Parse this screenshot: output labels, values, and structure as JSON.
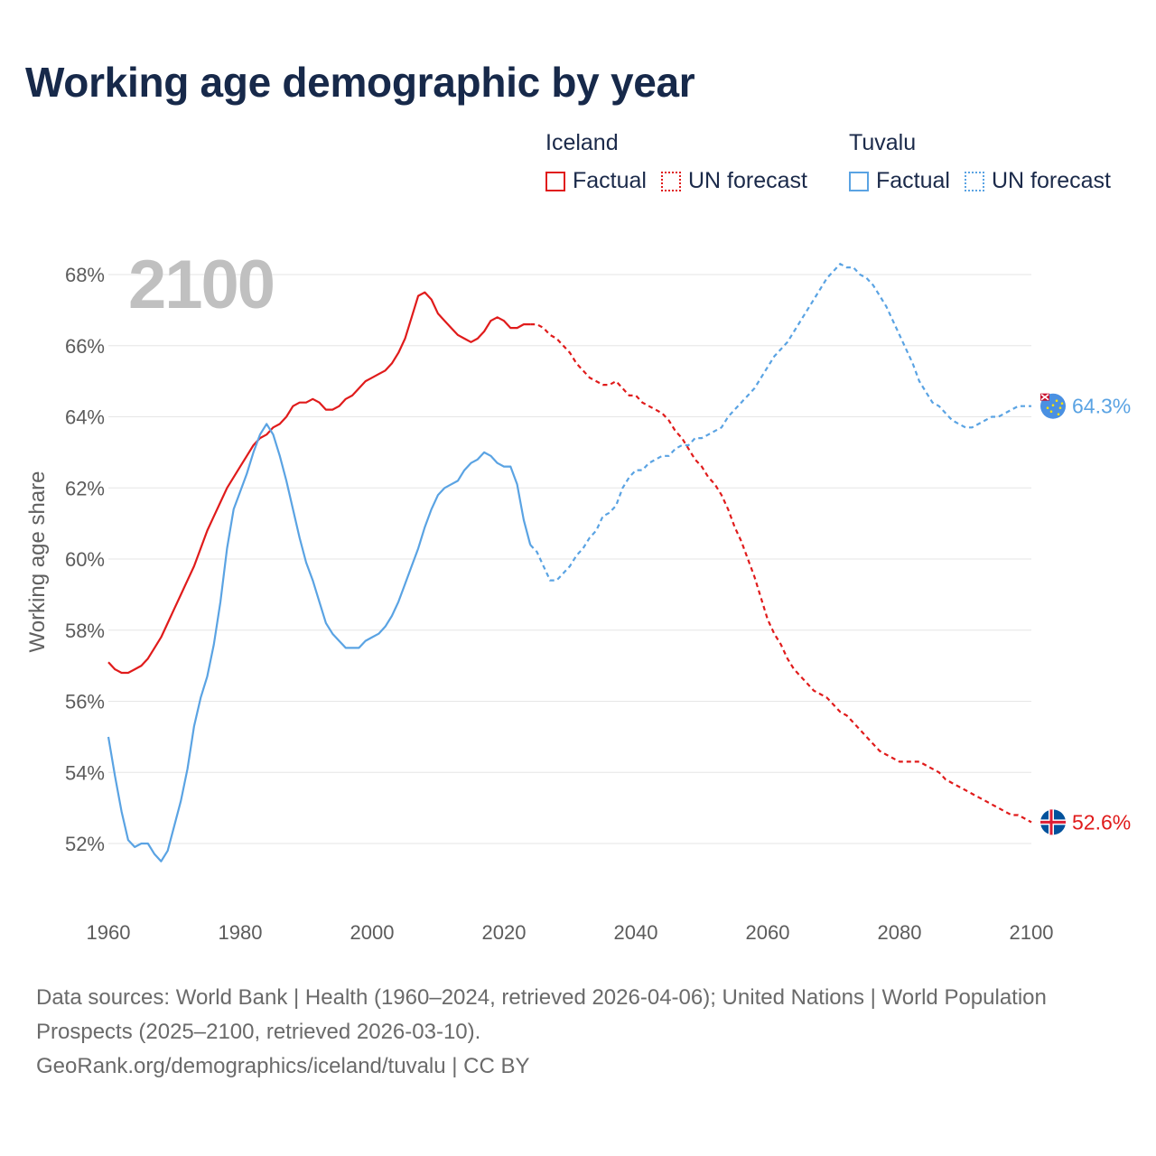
{
  "title": "Working age demographic by year",
  "year_watermark": "2100",
  "legend": {
    "groups": [
      {
        "name": "Iceland",
        "color": "#e01b1b",
        "items": [
          {
            "label": "Factual",
            "style": "solid"
          },
          {
            "label": "UN forecast",
            "style": "dotted"
          }
        ]
      },
      {
        "name": "Tuvalu",
        "color": "#5aa3e3",
        "items": [
          {
            "label": "Factual",
            "style": "solid"
          },
          {
            "label": "UN forecast",
            "style": "dotted"
          }
        ]
      }
    ]
  },
  "sources": {
    "line1": "Data sources: World Bank | Health (1960–2024, retrieved 2026-04-06); United Nations | World Population Prospects (2025–2100, retrieved 2026-03-10).",
    "line2": "GeoRank.org/demographics/iceland/tuvalu | CC BY"
  },
  "chart_data": {
    "type": "line",
    "title": "Working age demographic by year",
    "xlabel": "",
    "ylabel": "Working age share",
    "xlim": [
      1960,
      2100
    ],
    "ylim": [
      51,
      69
    ],
    "x_ticks": [
      1960,
      1980,
      2000,
      2020,
      2040,
      2060,
      2080,
      2100
    ],
    "y_ticks": [
      52,
      54,
      56,
      58,
      60,
      62,
      64,
      66,
      68
    ],
    "y_tick_suffix": "%",
    "grid": true,
    "factual_end_year": 2024,
    "series": [
      {
        "name": "Iceland",
        "color": "#e01b1b",
        "end_label": "52.6%",
        "points": [
          [
            1960,
            57.1
          ],
          [
            1961,
            56.9
          ],
          [
            1962,
            56.8
          ],
          [
            1963,
            56.8
          ],
          [
            1964,
            56.9
          ],
          [
            1965,
            57.0
          ],
          [
            1966,
            57.2
          ],
          [
            1967,
            57.5
          ],
          [
            1968,
            57.8
          ],
          [
            1969,
            58.2
          ],
          [
            1970,
            58.6
          ],
          [
            1971,
            59.0
          ],
          [
            1972,
            59.4
          ],
          [
            1973,
            59.8
          ],
          [
            1974,
            60.3
          ],
          [
            1975,
            60.8
          ],
          [
            1976,
            61.2
          ],
          [
            1977,
            61.6
          ],
          [
            1978,
            62.0
          ],
          [
            1979,
            62.3
          ],
          [
            1980,
            62.6
          ],
          [
            1981,
            62.9
          ],
          [
            1982,
            63.2
          ],
          [
            1983,
            63.4
          ],
          [
            1984,
            63.5
          ],
          [
            1985,
            63.7
          ],
          [
            1986,
            63.8
          ],
          [
            1987,
            64.0
          ],
          [
            1988,
            64.3
          ],
          [
            1989,
            64.4
          ],
          [
            1990,
            64.4
          ],
          [
            1991,
            64.5
          ],
          [
            1992,
            64.4
          ],
          [
            1993,
            64.2
          ],
          [
            1994,
            64.2
          ],
          [
            1995,
            64.3
          ],
          [
            1996,
            64.5
          ],
          [
            1997,
            64.6
          ],
          [
            1998,
            64.8
          ],
          [
            1999,
            65.0
          ],
          [
            2000,
            65.1
          ],
          [
            2001,
            65.2
          ],
          [
            2002,
            65.3
          ],
          [
            2003,
            65.5
          ],
          [
            2004,
            65.8
          ],
          [
            2005,
            66.2
          ],
          [
            2006,
            66.8
          ],
          [
            2007,
            67.4
          ],
          [
            2008,
            67.5
          ],
          [
            2009,
            67.3
          ],
          [
            2010,
            66.9
          ],
          [
            2011,
            66.7
          ],
          [
            2012,
            66.5
          ],
          [
            2013,
            66.3
          ],
          [
            2014,
            66.2
          ],
          [
            2015,
            66.1
          ],
          [
            2016,
            66.2
          ],
          [
            2017,
            66.4
          ],
          [
            2018,
            66.7
          ],
          [
            2019,
            66.8
          ],
          [
            2020,
            66.7
          ],
          [
            2021,
            66.5
          ],
          [
            2022,
            66.5
          ],
          [
            2023,
            66.6
          ],
          [
            2024,
            66.6
          ],
          [
            2025,
            66.6
          ],
          [
            2026,
            66.5
          ],
          [
            2027,
            66.3
          ],
          [
            2028,
            66.2
          ],
          [
            2029,
            66.0
          ],
          [
            2030,
            65.8
          ],
          [
            2031,
            65.5
          ],
          [
            2032,
            65.3
          ],
          [
            2033,
            65.1
          ],
          [
            2034,
            65.0
          ],
          [
            2035,
            64.9
          ],
          [
            2036,
            64.9
          ],
          [
            2037,
            65.0
          ],
          [
            2038,
            64.8
          ],
          [
            2039,
            64.6
          ],
          [
            2040,
            64.6
          ],
          [
            2041,
            64.4
          ],
          [
            2042,
            64.3
          ],
          [
            2043,
            64.2
          ],
          [
            2044,
            64.1
          ],
          [
            2045,
            63.9
          ],
          [
            2046,
            63.6
          ],
          [
            2047,
            63.4
          ],
          [
            2048,
            63.1
          ],
          [
            2049,
            62.8
          ],
          [
            2050,
            62.6
          ],
          [
            2051,
            62.3
          ],
          [
            2052,
            62.1
          ],
          [
            2053,
            61.8
          ],
          [
            2054,
            61.4
          ],
          [
            2055,
            60.9
          ],
          [
            2056,
            60.5
          ],
          [
            2057,
            60.0
          ],
          [
            2058,
            59.5
          ],
          [
            2059,
            58.9
          ],
          [
            2060,
            58.3
          ],
          [
            2061,
            57.9
          ],
          [
            2062,
            57.6
          ],
          [
            2063,
            57.2
          ],
          [
            2064,
            56.9
          ],
          [
            2065,
            56.7
          ],
          [
            2066,
            56.5
          ],
          [
            2067,
            56.3
          ],
          [
            2068,
            56.2
          ],
          [
            2069,
            56.1
          ],
          [
            2070,
            55.9
          ],
          [
            2071,
            55.7
          ],
          [
            2072,
            55.6
          ],
          [
            2073,
            55.4
          ],
          [
            2074,
            55.2
          ],
          [
            2075,
            55.0
          ],
          [
            2076,
            54.8
          ],
          [
            2077,
            54.6
          ],
          [
            2078,
            54.5
          ],
          [
            2079,
            54.4
          ],
          [
            2080,
            54.3
          ],
          [
            2081,
            54.3
          ],
          [
            2082,
            54.3
          ],
          [
            2083,
            54.3
          ],
          [
            2084,
            54.2
          ],
          [
            2085,
            54.1
          ],
          [
            2086,
            54.0
          ],
          [
            2087,
            53.8
          ],
          [
            2088,
            53.7
          ],
          [
            2089,
            53.6
          ],
          [
            2090,
            53.5
          ],
          [
            2091,
            53.4
          ],
          [
            2092,
            53.3
          ],
          [
            2093,
            53.2
          ],
          [
            2094,
            53.1
          ],
          [
            2095,
            53.0
          ],
          [
            2096,
            52.9
          ],
          [
            2097,
            52.8
          ],
          [
            2098,
            52.8
          ],
          [
            2099,
            52.7
          ],
          [
            2100,
            52.6
          ]
        ]
      },
      {
        "name": "Tuvalu",
        "color": "#5aa3e3",
        "end_label": "64.3%",
        "points": [
          [
            1960,
            55.0
          ],
          [
            1961,
            53.9
          ],
          [
            1962,
            52.9
          ],
          [
            1963,
            52.1
          ],
          [
            1964,
            51.9
          ],
          [
            1965,
            52.0
          ],
          [
            1966,
            52.0
          ],
          [
            1967,
            51.7
          ],
          [
            1968,
            51.5
          ],
          [
            1969,
            51.8
          ],
          [
            1970,
            52.5
          ],
          [
            1971,
            53.2
          ],
          [
            1972,
            54.1
          ],
          [
            1973,
            55.3
          ],
          [
            1974,
            56.1
          ],
          [
            1975,
            56.7
          ],
          [
            1976,
            57.6
          ],
          [
            1977,
            58.8
          ],
          [
            1978,
            60.3
          ],
          [
            1979,
            61.4
          ],
          [
            1980,
            61.9
          ],
          [
            1981,
            62.4
          ],
          [
            1982,
            63.0
          ],
          [
            1983,
            63.5
          ],
          [
            1984,
            63.8
          ],
          [
            1985,
            63.5
          ],
          [
            1986,
            62.9
          ],
          [
            1987,
            62.2
          ],
          [
            1988,
            61.4
          ],
          [
            1989,
            60.6
          ],
          [
            1990,
            59.9
          ],
          [
            1991,
            59.4
          ],
          [
            1992,
            58.8
          ],
          [
            1993,
            58.2
          ],
          [
            1994,
            57.9
          ],
          [
            1995,
            57.7
          ],
          [
            1996,
            57.5
          ],
          [
            1997,
            57.5
          ],
          [
            1998,
            57.5
          ],
          [
            1999,
            57.7
          ],
          [
            2000,
            57.8
          ],
          [
            2001,
            57.9
          ],
          [
            2002,
            58.1
          ],
          [
            2003,
            58.4
          ],
          [
            2004,
            58.8
          ],
          [
            2005,
            59.3
          ],
          [
            2006,
            59.8
          ],
          [
            2007,
            60.3
          ],
          [
            2008,
            60.9
          ],
          [
            2009,
            61.4
          ],
          [
            2010,
            61.8
          ],
          [
            2011,
            62.0
          ],
          [
            2012,
            62.1
          ],
          [
            2013,
            62.2
          ],
          [
            2014,
            62.5
          ],
          [
            2015,
            62.7
          ],
          [
            2016,
            62.8
          ],
          [
            2017,
            63.0
          ],
          [
            2018,
            62.9
          ],
          [
            2019,
            62.7
          ],
          [
            2020,
            62.6
          ],
          [
            2021,
            62.6
          ],
          [
            2022,
            62.1
          ],
          [
            2023,
            61.1
          ],
          [
            2024,
            60.4
          ],
          [
            2025,
            60.2
          ],
          [
            2026,
            59.8
          ],
          [
            2027,
            59.4
          ],
          [
            2028,
            59.4
          ],
          [
            2029,
            59.6
          ],
          [
            2030,
            59.8
          ],
          [
            2031,
            60.1
          ],
          [
            2032,
            60.3
          ],
          [
            2033,
            60.6
          ],
          [
            2034,
            60.8
          ],
          [
            2035,
            61.2
          ],
          [
            2036,
            61.3
          ],
          [
            2037,
            61.5
          ],
          [
            2038,
            62.0
          ],
          [
            2039,
            62.3
          ],
          [
            2040,
            62.5
          ],
          [
            2041,
            62.5
          ],
          [
            2042,
            62.7
          ],
          [
            2043,
            62.8
          ],
          [
            2044,
            62.9
          ],
          [
            2045,
            62.9
          ],
          [
            2046,
            63.1
          ],
          [
            2047,
            63.2
          ],
          [
            2048,
            63.2
          ],
          [
            2049,
            63.4
          ],
          [
            2050,
            63.4
          ],
          [
            2051,
            63.5
          ],
          [
            2052,
            63.6
          ],
          [
            2053,
            63.7
          ],
          [
            2054,
            64.0
          ],
          [
            2055,
            64.2
          ],
          [
            2056,
            64.4
          ],
          [
            2057,
            64.6
          ],
          [
            2058,
            64.8
          ],
          [
            2059,
            65.1
          ],
          [
            2060,
            65.4
          ],
          [
            2061,
            65.7
          ],
          [
            2062,
            65.9
          ],
          [
            2063,
            66.1
          ],
          [
            2064,
            66.4
          ],
          [
            2065,
            66.7
          ],
          [
            2066,
            67.0
          ],
          [
            2067,
            67.3
          ],
          [
            2068,
            67.6
          ],
          [
            2069,
            67.9
          ],
          [
            2070,
            68.1
          ],
          [
            2071,
            68.3
          ],
          [
            2072,
            68.2
          ],
          [
            2073,
            68.2
          ],
          [
            2074,
            68.0
          ],
          [
            2075,
            67.9
          ],
          [
            2076,
            67.7
          ],
          [
            2077,
            67.4
          ],
          [
            2078,
            67.1
          ],
          [
            2079,
            66.7
          ],
          [
            2080,
            66.3
          ],
          [
            2081,
            65.9
          ],
          [
            2082,
            65.5
          ],
          [
            2083,
            65.0
          ],
          [
            2084,
            64.7
          ],
          [
            2085,
            64.4
          ],
          [
            2086,
            64.3
          ],
          [
            2087,
            64.1
          ],
          [
            2088,
            63.9
          ],
          [
            2089,
            63.8
          ],
          [
            2090,
            63.7
          ],
          [
            2091,
            63.7
          ],
          [
            2092,
            63.8
          ],
          [
            2093,
            63.9
          ],
          [
            2094,
            64.0
          ],
          [
            2095,
            64.0
          ],
          [
            2096,
            64.1
          ],
          [
            2097,
            64.2
          ],
          [
            2098,
            64.3
          ],
          [
            2099,
            64.3
          ],
          [
            2100,
            64.3
          ]
        ]
      }
    ]
  }
}
